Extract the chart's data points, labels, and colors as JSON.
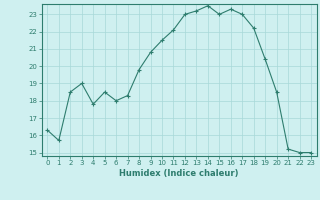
{
  "x": [
    0,
    1,
    2,
    3,
    4,
    5,
    6,
    7,
    8,
    9,
    10,
    11,
    12,
    13,
    14,
    15,
    16,
    17,
    18,
    19,
    20,
    21,
    22,
    23
  ],
  "y": [
    16.3,
    15.7,
    18.5,
    19.0,
    17.8,
    18.5,
    18.0,
    18.3,
    19.8,
    20.8,
    21.5,
    22.1,
    23.0,
    23.2,
    23.5,
    23.0,
    23.3,
    23.0,
    22.2,
    20.4,
    18.5,
    15.2,
    15.0,
    15.0
  ],
  "line_color": "#2e7d6e",
  "marker": "+",
  "marker_size": 3,
  "bg_color": "#cff0f0",
  "grid_color": "#a8d8d8",
  "xlabel": "Humidex (Indice chaleur)",
  "ylim": [
    14.8,
    23.6
  ],
  "xlim": [
    -0.5,
    23.5
  ],
  "yticks": [
    15,
    16,
    17,
    18,
    19,
    20,
    21,
    22,
    23
  ],
  "xticks": [
    0,
    1,
    2,
    3,
    4,
    5,
    6,
    7,
    8,
    9,
    10,
    11,
    12,
    13,
    14,
    15,
    16,
    17,
    18,
    19,
    20,
    21,
    22,
    23
  ],
  "axis_color": "#2e7d6e",
  "tick_fontsize": 5.0,
  "xlabel_fontsize": 6.0
}
